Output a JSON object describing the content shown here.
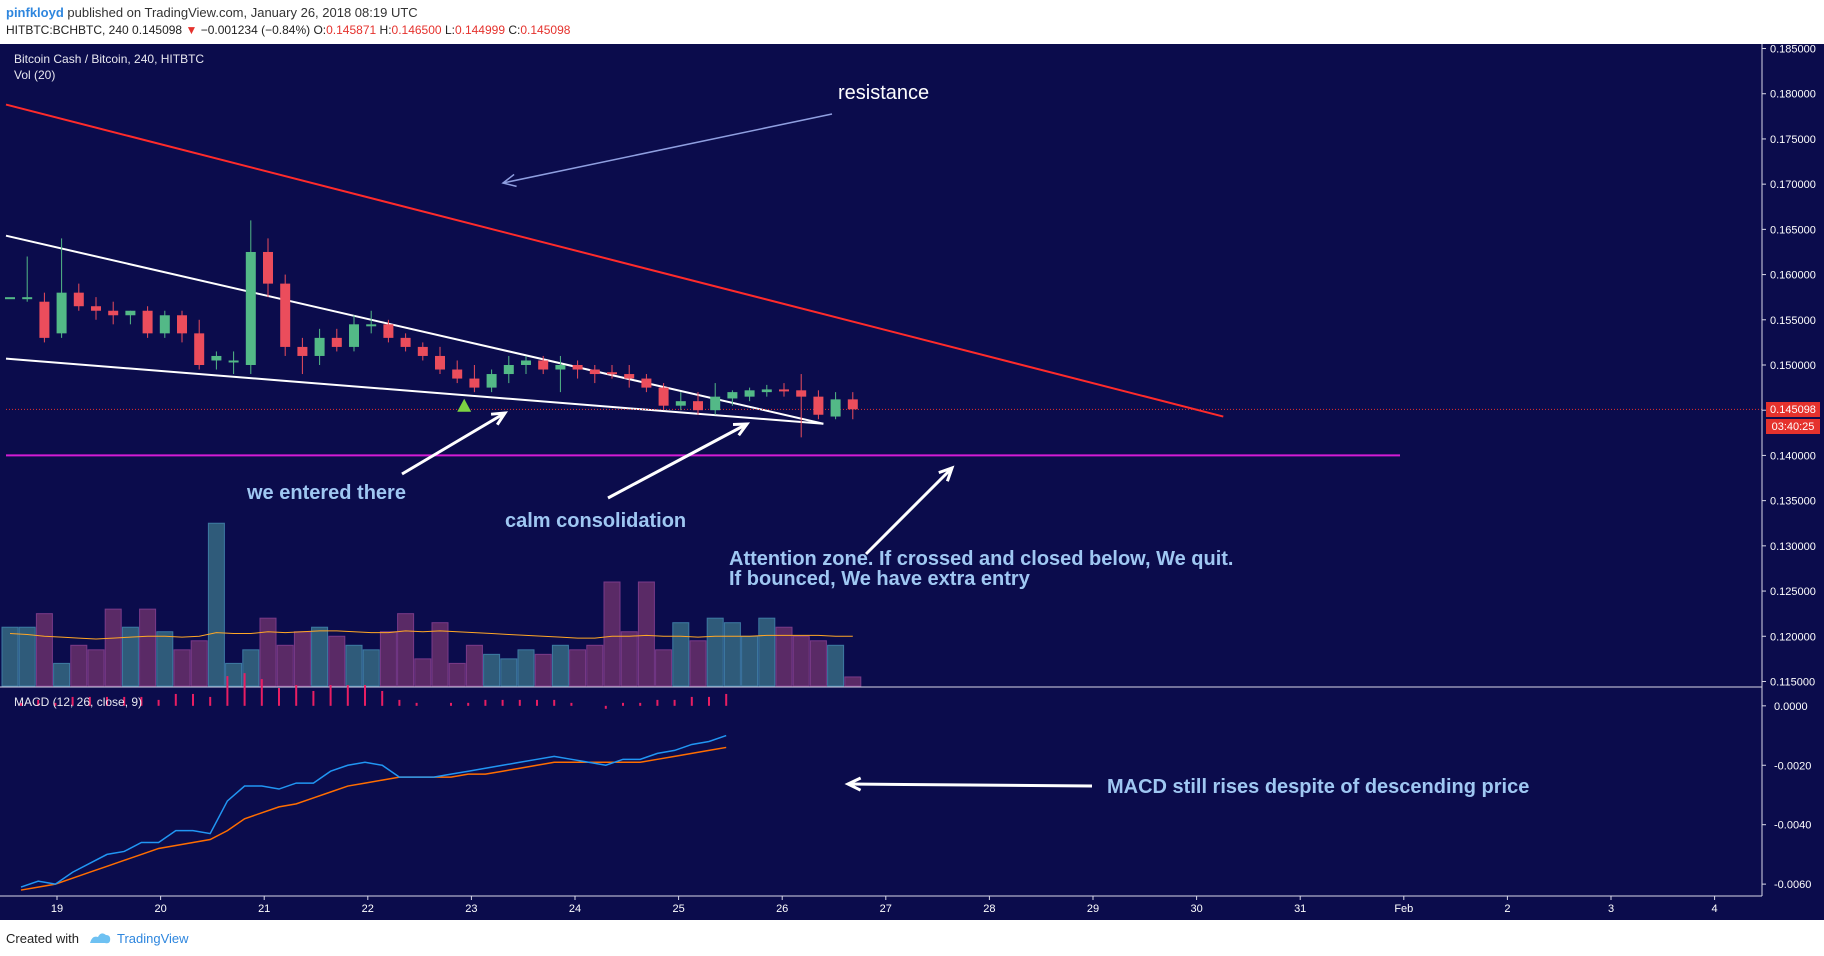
{
  "header": {
    "author": "pinfkloyd",
    "published_text": "published on TradingView.com, January 26, 2018 08:19 UTC",
    "symbol_line": "HITBTC:BCHBTC, 240",
    "last_price": "0.145098",
    "arrow": "▼",
    "change": "−0.001234 (−0.84%)",
    "o_label": "O:",
    "o_value": "0.145871",
    "h_label": "H:",
    "h_value": "0.146500",
    "l_label": "L:",
    "l_value": "0.144999",
    "c_label": "C:",
    "c_value": "0.145098"
  },
  "chart": {
    "title": "Bitcoin Cash / Bitcoin, 240, HITBTC",
    "vol_label": "Vol (20)",
    "macd_label": "MACD (12, 26, close, 9)",
    "price_badge": "0.145098",
    "time_badge": "03:40:25",
    "annotations": {
      "resistance": "resistance",
      "entered": "we entered there",
      "consolidation": "calm consolidation",
      "attention_1": "Attention zone. If crossed and closed below, We quit.",
      "attention_2": "If bounced, We have extra entry",
      "macd_note": "MACD still rises despite of descending price"
    }
  },
  "footer": {
    "created_with": "Created with",
    "brand": "TradingView"
  },
  "colors": {
    "background": "#0b0c4c",
    "bull": "#53b987",
    "bear": "#eb4d5c",
    "resistance_line": "#ff2b2b",
    "support_line": "#d41cd4",
    "trend_lines": "#ffffff",
    "annotation_text": "#9fc7f2",
    "macd_line": "#2196f3",
    "signal_line": "#ff6d00",
    "histogram": "#e91e63"
  },
  "chart_data": {
    "type": "candlestick",
    "title": "Bitcoin Cash / Bitcoin, 240, HITBTC",
    "x_ticks": [
      "19",
      "20",
      "21",
      "22",
      "23",
      "24",
      "25",
      "26",
      "27",
      "28",
      "29",
      "30",
      "31",
      "Feb",
      "2",
      "3",
      "4"
    ],
    "price_axis": {
      "ticks": [
        "0.185000",
        "0.180000",
        "0.175000",
        "0.170000",
        "0.165000",
        "0.160000",
        "0.155000",
        "0.150000",
        "0.145000",
        "0.140000",
        "0.135000",
        "0.130000",
        "0.125000",
        "0.120000",
        "0.115000"
      ],
      "range": [
        0.1145,
        0.1855
      ]
    },
    "macd_axis": {
      "ticks": [
        "0.0000",
        "-0.0020",
        "-0.0040",
        "-0.0060"
      ],
      "range": [
        -0.0064,
        0.0006
      ]
    },
    "candles_ohlc": [
      [
        0.1575,
        0.1575,
        0.1575,
        0.1575
      ],
      [
        0.1575,
        0.162,
        0.157,
        0.1575
      ],
      [
        0.157,
        0.158,
        0.1525,
        0.153
      ],
      [
        0.1535,
        0.164,
        0.153,
        0.158
      ],
      [
        0.158,
        0.159,
        0.156,
        0.1565
      ],
      [
        0.1565,
        0.1575,
        0.155,
        0.156
      ],
      [
        0.156,
        0.157,
        0.1545,
        0.1555
      ],
      [
        0.1555,
        0.156,
        0.1545,
        0.156
      ],
      [
        0.156,
        0.1565,
        0.153,
        0.1535
      ],
      [
        0.1535,
        0.156,
        0.153,
        0.1555
      ],
      [
        0.1555,
        0.156,
        0.1525,
        0.1535
      ],
      [
        0.1535,
        0.155,
        0.1495,
        0.15
      ],
      [
        0.1505,
        0.1515,
        0.1495,
        0.151
      ],
      [
        0.1505,
        0.1515,
        0.149,
        0.1505
      ],
      [
        0.15,
        0.166,
        0.149,
        0.1625
      ],
      [
        0.1625,
        0.164,
        0.1575,
        0.159
      ],
      [
        0.159,
        0.16,
        0.151,
        0.152
      ],
      [
        0.152,
        0.153,
        0.149,
        0.151
      ],
      [
        0.151,
        0.154,
        0.15,
        0.153
      ],
      [
        0.153,
        0.154,
        0.1515,
        0.152
      ],
      [
        0.152,
        0.1555,
        0.1515,
        0.1545
      ],
      [
        0.1545,
        0.156,
        0.1535,
        0.1545
      ],
      [
        0.1545,
        0.155,
        0.1525,
        0.153
      ],
      [
        0.153,
        0.1535,
        0.1515,
        0.152
      ],
      [
        0.152,
        0.1525,
        0.1505,
        0.151
      ],
      [
        0.151,
        0.152,
        0.149,
        0.1495
      ],
      [
        0.1495,
        0.1505,
        0.148,
        0.1485
      ],
      [
        0.1485,
        0.15,
        0.147,
        0.1475
      ],
      [
        0.1475,
        0.1495,
        0.147,
        0.149
      ],
      [
        0.149,
        0.151,
        0.148,
        0.15
      ],
      [
        0.15,
        0.151,
        0.149,
        0.1505
      ],
      [
        0.1505,
        0.151,
        0.149,
        0.1495
      ],
      [
        0.1495,
        0.151,
        0.147,
        0.15
      ],
      [
        0.15,
        0.1505,
        0.1485,
        0.1495
      ],
      [
        0.1495,
        0.15,
        0.148,
        0.149
      ],
      [
        0.1492,
        0.15,
        0.1485,
        0.149
      ],
      [
        0.149,
        0.15,
        0.1475,
        0.1485
      ],
      [
        0.1485,
        0.149,
        0.147,
        0.1475
      ],
      [
        0.1475,
        0.148,
        0.145,
        0.1455
      ],
      [
        0.1455,
        0.147,
        0.145,
        0.146
      ],
      [
        0.146,
        0.147,
        0.1445,
        0.145
      ],
      [
        0.145,
        0.148,
        0.1445,
        0.1465
      ],
      [
        0.1463,
        0.1472,
        0.1455,
        0.147
      ],
      [
        0.1465,
        0.1475,
        0.146,
        0.1472
      ],
      [
        0.147,
        0.1478,
        0.1465,
        0.1473
      ],
      [
        0.1473,
        0.148,
        0.1465,
        0.1472
      ],
      [
        0.1472,
        0.149,
        0.142,
        0.1465
      ],
      [
        0.1465,
        0.1472,
        0.144,
        0.1445
      ],
      [
        0.1443,
        0.147,
        0.144,
        0.1462
      ],
      [
        0.1462,
        0.147,
        0.144,
        0.1451
      ]
    ],
    "volume": [
      0.121,
      0.121,
      0.1225,
      0.117,
      0.119,
      0.1185,
      0.123,
      0.121,
      0.123,
      0.1205,
      0.1185,
      0.1195,
      0.1325,
      0.117,
      0.1185,
      0.122,
      0.119,
      0.1205,
      0.121,
      0.12,
      0.119,
      0.1185,
      0.1205,
      0.1225,
      0.1175,
      0.1215,
      0.117,
      0.119,
      0.118,
      0.1175,
      0.1185,
      0.118,
      0.119,
      0.1185,
      0.119,
      0.126,
      0.1205,
      0.126,
      0.1185,
      0.1215,
      0.1195,
      0.122,
      0.1215,
      0.12,
      0.122,
      0.121,
      0.12,
      0.1195,
      0.119,
      0.1155
    ],
    "volume_ma": [
      0.1203,
      0.1202,
      0.12,
      0.1199,
      0.1198,
      0.1197,
      0.1198,
      0.1199,
      0.12,
      0.12,
      0.1199,
      0.12,
      0.1204,
      0.1203,
      0.1203,
      0.1205,
      0.1204,
      0.1205,
      0.1206,
      0.1206,
      0.1205,
      0.1204,
      0.1204,
      0.1206,
      0.1205,
      0.1206,
      0.1205,
      0.1204,
      0.1203,
      0.1202,
      0.1201,
      0.12,
      0.1199,
      0.1198,
      0.1198,
      0.12,
      0.12,
      0.1201,
      0.12,
      0.12,
      0.1199,
      0.12,
      0.12,
      0.12,
      0.1201,
      0.1201,
      0.1201,
      0.1201,
      0.12,
      0.12
    ],
    "macd": [
      -0.0061,
      -0.0059,
      -0.006,
      -0.0056,
      -0.0053,
      -0.005,
      -0.0049,
      -0.0046,
      -0.0046,
      -0.0042,
      -0.0042,
      -0.0043,
      -0.0032,
      -0.0027,
      -0.0027,
      -0.0028,
      -0.0026,
      -0.0026,
      -0.0022,
      -0.002,
      -0.0019,
      -0.002,
      -0.0024,
      -0.0024,
      -0.0024,
      -0.0023,
      -0.0022,
      -0.0021,
      -0.002,
      -0.0019,
      -0.0018,
      -0.0017,
      -0.0018,
      -0.0019,
      -0.002,
      -0.0018,
      -0.0018,
      -0.0016,
      -0.0015,
      -0.0013,
      -0.0012,
      -0.001
    ],
    "macd_signal": [
      -0.0062,
      -0.0061,
      -0.006,
      -0.0058,
      -0.0056,
      -0.0054,
      -0.0052,
      -0.005,
      -0.0048,
      -0.0047,
      -0.0046,
      -0.0045,
      -0.0042,
      -0.0038,
      -0.0036,
      -0.0034,
      -0.0033,
      -0.0031,
      -0.0029,
      -0.0027,
      -0.0026,
      -0.0025,
      -0.0024,
      -0.0024,
      -0.0024,
      -0.0024,
      -0.0023,
      -0.0023,
      -0.0022,
      -0.0021,
      -0.002,
      -0.0019,
      -0.0019,
      -0.0019,
      -0.0019,
      -0.0019,
      -0.0019,
      -0.0018,
      -0.0017,
      -0.0016,
      -0.0015,
      -0.0014
    ],
    "macd_hist": [
      0.0001,
      0.0002,
      0.0001,
      0.0003,
      0.0003,
      0.0003,
      0.0003,
      0.0003,
      0.0002,
      0.0004,
      0.0004,
      0.0003,
      0.001,
      0.0011,
      0.0009,
      0.0006,
      0.0007,
      0.0005,
      0.0007,
      0.0007,
      0.0007,
      0.0005,
      0.0002,
      0.0001,
      0.0,
      0.0001,
      0.0001,
      0.0002,
      0.0002,
      0.0002,
      0.0002,
      0.0002,
      0.0001,
      0.0,
      -0.0001,
      0.0001,
      0.0001,
      0.0002,
      0.0002,
      0.0003,
      0.0003,
      0.0004
    ],
    "lines": {
      "resistance": [
        [
          0.0,
          0.1788
        ],
        [
          0.694,
          0.1443
        ]
      ],
      "upper_trend": [
        [
          0.0,
          0.1643
        ],
        [
          0.466,
          0.1435
        ]
      ],
      "lower_trend": [
        [
          0.0,
          0.1507
        ],
        [
          0.466,
          0.1435
        ]
      ],
      "support": 0.14,
      "current_price": 0.145098
    }
  }
}
